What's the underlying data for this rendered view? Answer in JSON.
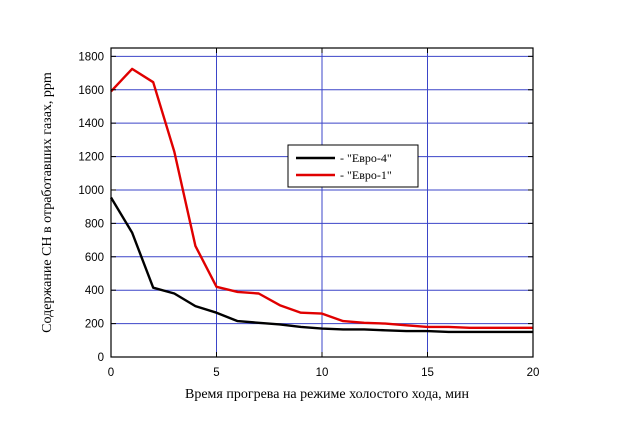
{
  "chart_data": {
    "type": "line",
    "title": "",
    "xlabel": "Время прогрева на режиме холостого хода, мин",
    "ylabel": "Содержание CH в отработавших газах, ppm",
    "xlim": [
      0,
      20
    ],
    "ylim": [
      0,
      1850
    ],
    "xticks": [
      0,
      5,
      10,
      15,
      20
    ],
    "yticks": [
      0,
      200,
      400,
      600,
      800,
      1000,
      1200,
      1400,
      1600,
      1800
    ],
    "grid": true,
    "grid_color": "#3b45c8",
    "legend_position": "center-right",
    "series": [
      {
        "name": "- \"Евро-4\"",
        "color": "#000000",
        "x": [
          0,
          1,
          2,
          3,
          4,
          5,
          6,
          7,
          8,
          9,
          10,
          11,
          12,
          13,
          14,
          15,
          16,
          17,
          18,
          19,
          20
        ],
        "values": [
          955,
          745,
          415,
          380,
          305,
          265,
          215,
          205,
          195,
          180,
          170,
          165,
          165,
          160,
          155,
          155,
          150,
          150,
          150,
          150,
          150
        ]
      },
      {
        "name": "- \"Евро-1\"",
        "color": "#e00000",
        "x": [
          0,
          1,
          2,
          3,
          4,
          5,
          6,
          7,
          8,
          9,
          10,
          11,
          12,
          13,
          14,
          15,
          16,
          17,
          18,
          19,
          20
        ],
        "values": [
          1590,
          1725,
          1645,
          1230,
          665,
          420,
          390,
          380,
          310,
          265,
          260,
          215,
          205,
          200,
          190,
          180,
          180,
          175,
          175,
          175,
          175
        ]
      }
    ]
  }
}
